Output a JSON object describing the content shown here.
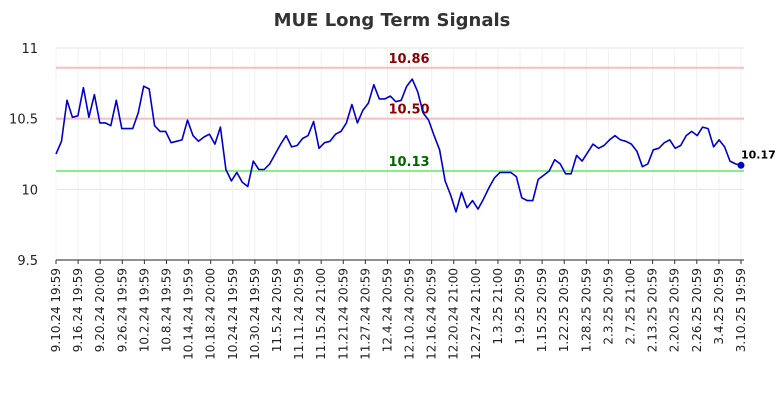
{
  "chart_data": {
    "type": "line",
    "title": "MUE Long Term Signals",
    "ylim": [
      9.5,
      11
    ],
    "y_ticks": [
      "9.5",
      "10",
      "10.5",
      "11"
    ],
    "x_tick_labels": [
      "9.10.24 19:59",
      "9.16.24 19:59",
      "9.20.24 20:00",
      "9.26.24 19:59",
      "10.2.24 19:59",
      "10.8.24 19:59",
      "10.14.24 19:59",
      "10.18.24 20:00",
      "10.24.24 19:59",
      "10.30.24 19:59",
      "11.5.24 20:59",
      "11.11.24 20:59",
      "11.15.24 21:00",
      "11.21.24 20:59",
      "11.27.24 20:59",
      "12.4.24 20:59",
      "12.10.24 20:59",
      "12.16.24 20:59",
      "12.20.24 21:00",
      "12.27.24 21:00",
      "1.3.25 21:00",
      "1.9.25 20:59",
      "1.15.25 20:59",
      "1.22.25 20:59",
      "1.28.25 20:59",
      "2.3.25 20:59",
      "2.7.25 21:00",
      "2.13.25 20:59",
      "2.20.25 20:59",
      "2.26.25 20:59",
      "3.4.25 20:59",
      "3.10.25 19:59"
    ],
    "grid": true,
    "colors": {
      "line": "#0000cc",
      "upper": "#ffbbbb",
      "middle": "#ffbbbb",
      "lower": "#88ee88",
      "upper_label": "#8b0000",
      "middle_label": "#8b0000",
      "lower_label": "#006600"
    },
    "levels": [
      {
        "value": 10.86,
        "label": "10.86",
        "kind": "upper"
      },
      {
        "value": 10.5,
        "label": "10.50",
        "kind": "middle"
      },
      {
        "value": 10.13,
        "label": "10.13",
        "kind": "lower"
      }
    ],
    "last_value": {
      "value": 10.17,
      "label": "10.17"
    },
    "series": [
      {
        "values": [
          10.25,
          10.34,
          10.63,
          10.51,
          10.52,
          10.72,
          10.51,
          10.67,
          10.47,
          10.47,
          10.45,
          10.63,
          10.43,
          10.43,
          10.43,
          10.54,
          10.73,
          10.71,
          10.45,
          10.41,
          10.41,
          10.33,
          10.34,
          10.35,
          10.49,
          10.38,
          10.34,
          10.37,
          10.39,
          10.32,
          10.44,
          10.14,
          10.06,
          10.12,
          10.05,
          10.02,
          10.2,
          10.14,
          10.14,
          10.18,
          10.25,
          10.32,
          10.38,
          10.3,
          10.31,
          10.36,
          10.38,
          10.48,
          10.29,
          10.33,
          10.34,
          10.39,
          10.41,
          10.47,
          10.6,
          10.47,
          10.56,
          10.61,
          10.74,
          10.64,
          10.64,
          10.66,
          10.62,
          10.63,
          10.73,
          10.78,
          10.69,
          10.54,
          10.49,
          10.38,
          10.28,
          10.06,
          9.96,
          9.84,
          9.98,
          9.87,
          9.92,
          9.86,
          9.93,
          10.01,
          10.08,
          10.12,
          10.12,
          10.12,
          10.09,
          9.94,
          9.92,
          9.92,
          10.07,
          10.1,
          10.13,
          10.21,
          10.18,
          10.11,
          10.11,
          10.24,
          10.2,
          10.26,
          10.32,
          10.29,
          10.31,
          10.35,
          10.38,
          10.35,
          10.34,
          10.32,
          10.27,
          10.16,
          10.18,
          10.28,
          10.29,
          10.33,
          10.35,
          10.29,
          10.31,
          10.38,
          10.41,
          10.38,
          10.44,
          10.43,
          10.3,
          10.35,
          10.3,
          10.2,
          10.18,
          10.17
        ]
      }
    ]
  }
}
